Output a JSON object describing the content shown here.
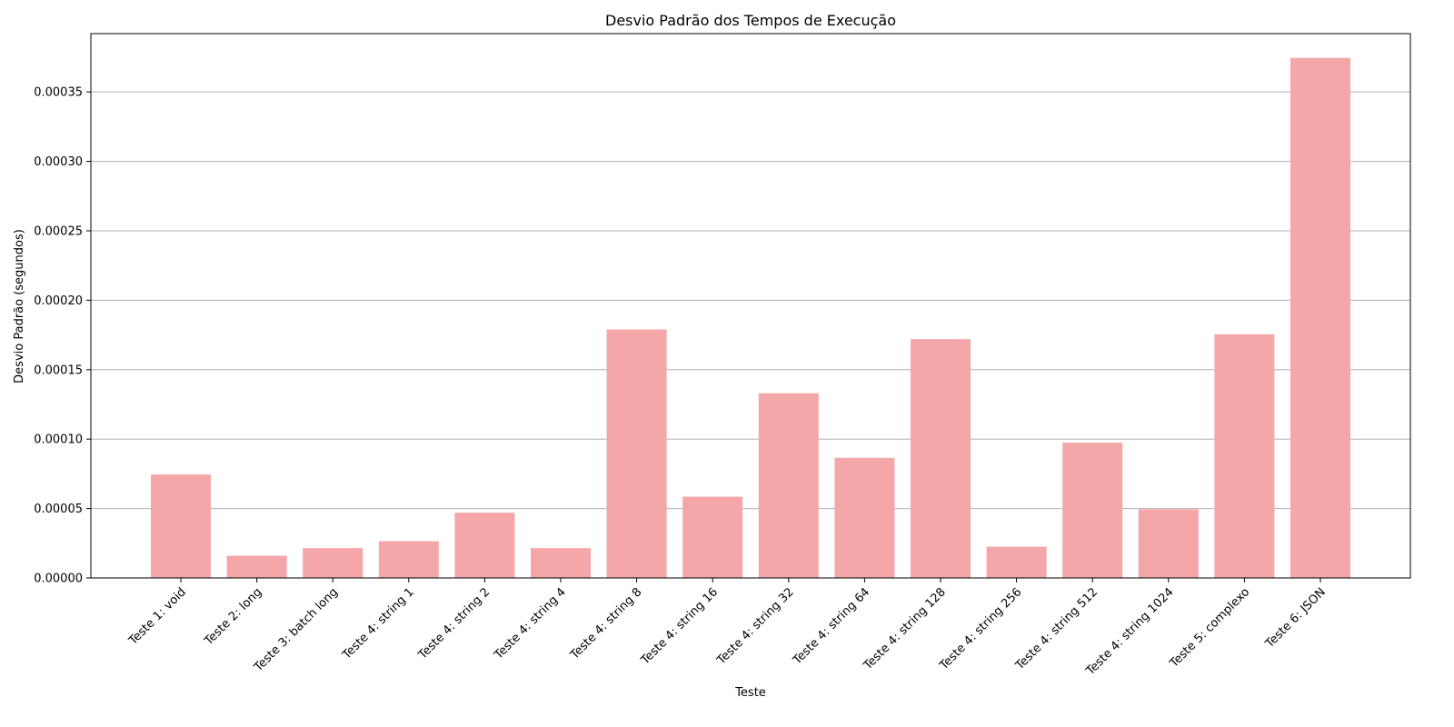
{
  "chart_data": {
    "type": "bar",
    "title": "Desvio Padrão dos Tempos de Execução",
    "xlabel": "Teste",
    "ylabel": "Desvio Padrão (segundos)",
    "categories": [
      "Teste 1: void",
      "Teste 2: long",
      "Teste 3: batch long",
      "Teste 4: string 1",
      "Teste 4: string 2",
      "Teste 4: string 4",
      "Teste 4: string 8",
      "Teste 4: string 16",
      "Teste 4: string 32",
      "Teste 4: string 64",
      "Teste 4: string 128",
      "Teste 4: string 256",
      "Teste 4: string 512",
      "Teste 4: string 1024",
      "Teste 5: complexo",
      "Teste 6: JSON"
    ],
    "values": [
      7.45e-05,
      1.6e-05,
      2.15e-05,
      2.65e-05,
      4.7e-05,
      2.15e-05,
      0.000179,
      5.85e-05,
      0.000133,
      8.65e-05,
      0.000172,
      2.25e-05,
      9.75e-05,
      4.95e-05,
      0.0001755,
      0.0003745
    ],
    "ylim": [
      0,
      0.000392
    ],
    "yticks": [
      "0.00000",
      "0.00005",
      "0.00010",
      "0.00015",
      "0.00020",
      "0.00025",
      "0.00030",
      "0.00035"
    ],
    "ytick_values": [
      0,
      5e-05,
      0.0001,
      0.00015,
      0.0002,
      0.00025,
      0.0003,
      0.00035
    ],
    "grid": "y",
    "bar_color": "#F4A6A8",
    "xtick_rotation_deg": 45
  }
}
